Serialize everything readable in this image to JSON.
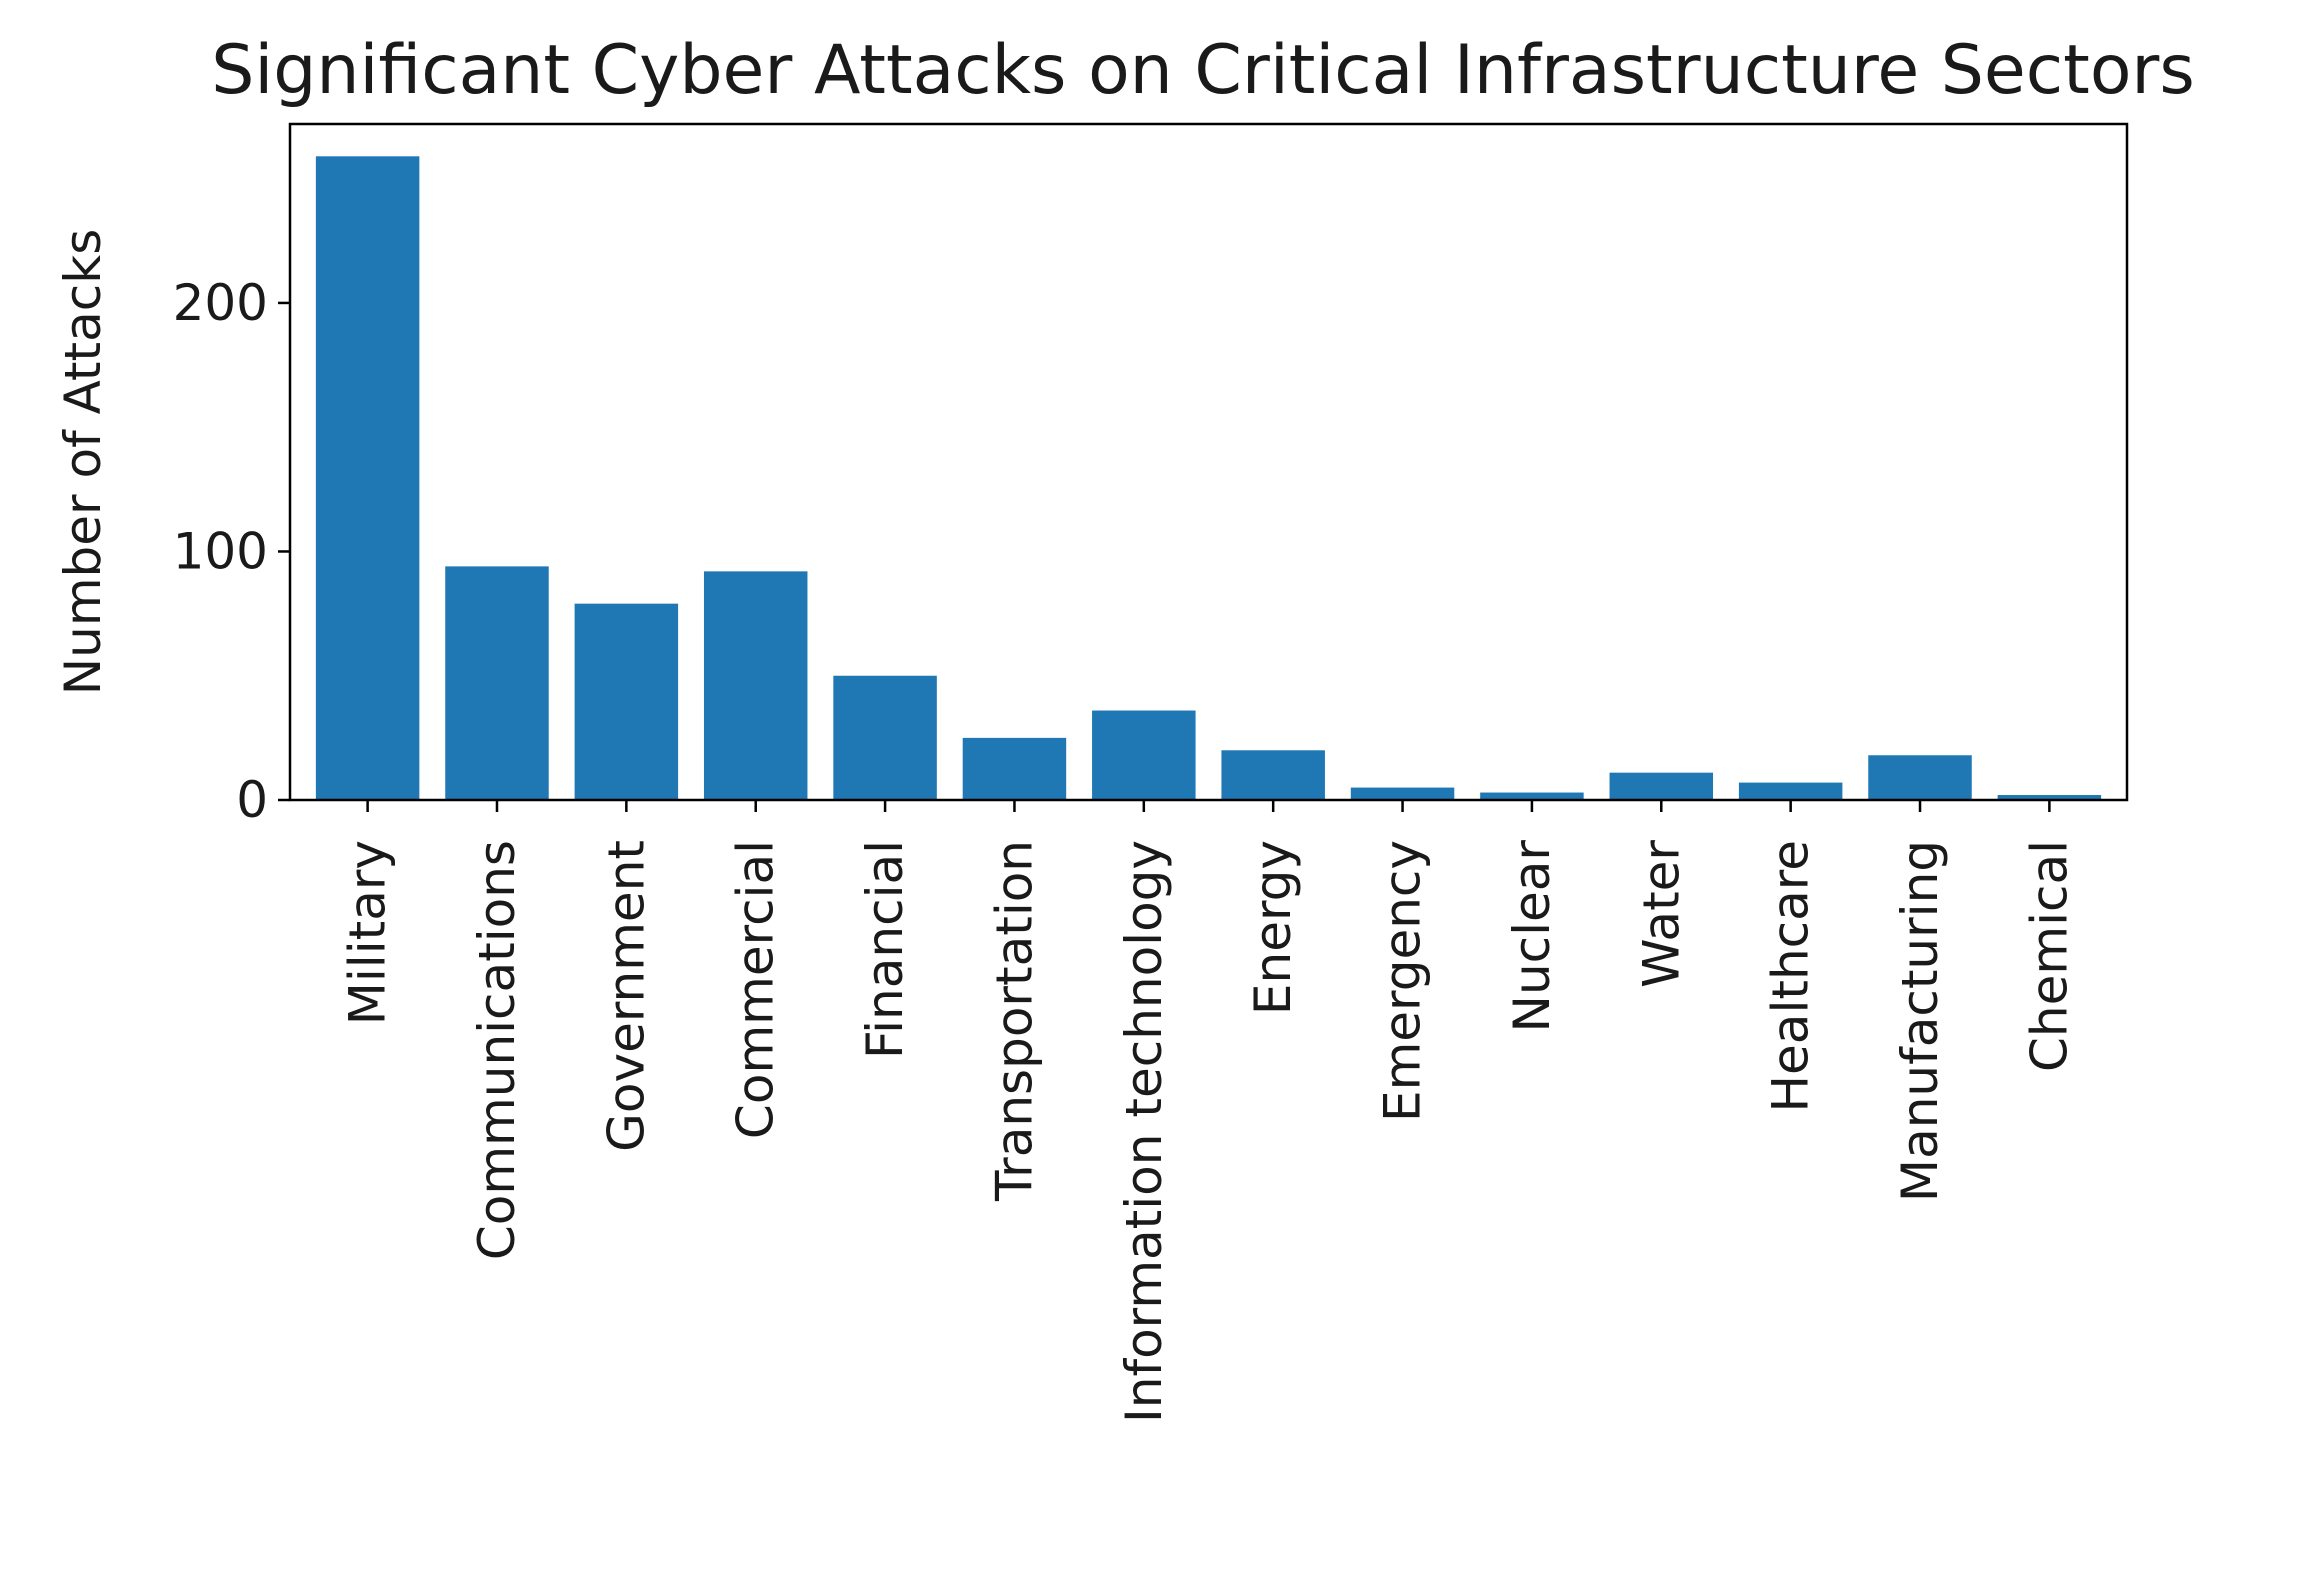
{
  "chart_data": {
    "type": "bar",
    "title": "Significant Cyber Attacks on Critical Infrastructure Sectors",
    "xlabel": "",
    "ylabel": "Number of Attacks",
    "categories": [
      "Military",
      "Communications",
      "Government",
      "Commercial",
      "Financial",
      "Transportation",
      "Information technology",
      "Energy",
      "Emergency",
      "Nuclear",
      "Water",
      "Healthcare",
      "Manufacturing",
      "Chemical"
    ],
    "values": [
      259,
      94,
      79,
      92,
      50,
      25,
      36,
      20,
      5,
      3,
      11,
      7,
      18,
      2
    ],
    "ylim": [
      0,
      272
    ],
    "yticks": [
      0,
      100,
      200
    ],
    "ytick_labels": [
      "0",
      "100",
      "200"
    ],
    "grid": false,
    "legend": "none",
    "bar_color": "#1f77b4"
  }
}
